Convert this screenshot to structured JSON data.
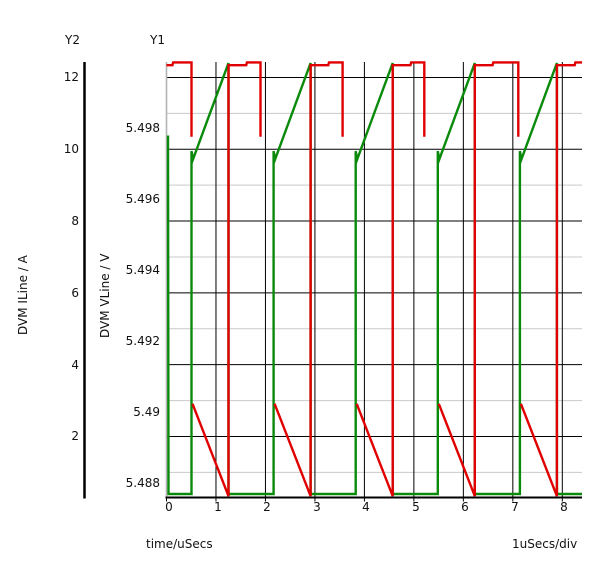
{
  "window": {
    "background": "#ffffff"
  },
  "labels": {
    "y2_title": "Y2",
    "y1_title": "Y1",
    "y2_unit": "DVM ILine / A",
    "y1_unit": "DVM VLine / V",
    "x_label": "time/uSecs",
    "x_scale": "1uSecs/div"
  },
  "colors": {
    "iline_trace": "#e00000",
    "vline_trace": "#0a8a0a",
    "grid_black": "#000000",
    "grid_gray": "#c9c9c9",
    "y1_axis_line": "#b4b4b4",
    "axis_black": "#000000",
    "text": "#111111"
  },
  "chart_data": {
    "type": "line",
    "title": "",
    "legend_position": "none",
    "grid": "on",
    "x_axis": {
      "label": "time/uSecs",
      "scale_note": "1uSecs/div",
      "range": [
        0,
        8.398
      ],
      "ticks": [
        0,
        1,
        2,
        3,
        4,
        5,
        6,
        7,
        8
      ],
      "tick_labels": [
        "0",
        "1",
        "2",
        "3",
        "4",
        "5",
        "6",
        "7",
        "8"
      ],
      "grid_values": [
        1,
        2,
        3,
        4,
        5,
        6,
        7,
        8
      ]
    },
    "y1_axis": {
      "title": "Y1",
      "label": "DVM VLine / V",
      "range": [
        5.4876,
        5.49987
      ],
      "ticks": [
        5.488,
        5.49,
        5.492,
        5.494,
        5.496,
        5.498
      ],
      "tick_labels": [
        "5.488",
        "5.49",
        "5.492",
        "5.494",
        "5.496",
        "5.498"
      ]
    },
    "y2_axis": {
      "title": "Y2",
      "label": "DVM ILine / A",
      "range": [
        0.3,
        12.43
      ],
      "ticks": [
        2,
        4,
        6,
        8,
        10,
        12
      ],
      "tick_labels": [
        "2",
        "4",
        "6",
        "8",
        "10",
        "12"
      ],
      "grid_values_black": [
        2,
        4,
        6,
        8,
        10,
        12
      ],
      "grid_values_gray": [
        1,
        3,
        5,
        7,
        9,
        11
      ]
    },
    "series": [
      {
        "name": "DVM VLine",
        "axis": "y1",
        "color": "#0a8a0a",
        "width": 2.4,
        "segments": [
          [
            [
              0.03,
              5.4978
            ],
            [
              0.04,
              5.4877
            ],
            [
              0.505,
              5.4877
            ],
            [
              0.505,
              5.49736
            ],
            [
              0.535,
              5.49713
            ],
            [
              1.253,
              5.49984
            ],
            [
              1.253,
              5.4877
            ],
            [
              2.165,
              5.4877
            ],
            [
              2.165,
              5.49736
            ],
            [
              2.195,
              5.49713
            ],
            [
              2.913,
              5.49984
            ],
            [
              2.913,
              5.4877
            ],
            [
              3.824,
              5.4877
            ],
            [
              3.824,
              5.49736
            ],
            [
              3.854,
              5.49713
            ],
            [
              4.572,
              5.49984
            ],
            [
              4.572,
              5.4877
            ],
            [
              5.484,
              5.4877
            ],
            [
              5.484,
              5.49736
            ],
            [
              5.514,
              5.49713
            ],
            [
              6.232,
              5.49984
            ],
            [
              6.232,
              5.4877
            ],
            [
              7.143,
              5.4877
            ],
            [
              7.143,
              5.49736
            ],
            [
              7.173,
              5.49713
            ],
            [
              7.891,
              5.49984
            ],
            [
              7.891,
              5.4877
            ],
            [
              8.398,
              5.4877
            ]
          ]
        ]
      },
      {
        "name": "DVM ILine",
        "axis": "y2",
        "color": "#e00000",
        "width": 2.4,
        "segments": [
          [
            [
              0,
              12.34
            ],
            [
              0.12,
              12.34
            ],
            [
              0.135,
              12.42
            ],
            [
              0.505,
              12.42
            ],
            [
              0.505,
              10.35
            ]
          ],
          [
            [
              0.525,
              2.91
            ],
            [
              1.253,
              0.34
            ],
            [
              1.253,
              12.34
            ],
            [
              1.61,
              12.34
            ],
            [
              1.625,
              12.42
            ],
            [
              1.9,
              12.42
            ],
            [
              1.9,
              10.35
            ]
          ],
          [
            [
              2.185,
              2.91
            ],
            [
              2.913,
              0.34
            ],
            [
              2.913,
              12.34
            ],
            [
              3.27,
              12.34
            ],
            [
              3.285,
              12.42
            ],
            [
              3.56,
              12.42
            ],
            [
              3.56,
              10.35
            ]
          ],
          [
            [
              3.844,
              2.91
            ],
            [
              4.572,
              0.34
            ],
            [
              4.572,
              12.34
            ],
            [
              4.93,
              12.34
            ],
            [
              4.945,
              12.42
            ],
            [
              5.21,
              12.42
            ],
            [
              5.21,
              10.35
            ]
          ],
          [
            [
              5.504,
              2.91
            ],
            [
              6.232,
              0.34
            ],
            [
              6.232,
              12.34
            ],
            [
              6.59,
              12.34
            ],
            [
              6.605,
              12.42
            ],
            [
              7.11,
              12.42
            ],
            [
              7.11,
              10.35
            ]
          ],
          [
            [
              7.163,
              2.91
            ],
            [
              7.891,
              0.34
            ],
            [
              7.891,
              12.34
            ],
            [
              8.25,
              12.34
            ],
            [
              8.265,
              12.42
            ],
            [
              8.398,
              12.42
            ]
          ]
        ]
      }
    ]
  }
}
